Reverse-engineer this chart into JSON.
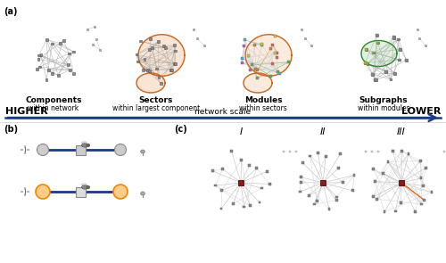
{
  "bg_color": "#ffffff",
  "arrow_color": "#1a3a8a",
  "node_gray": "#8a8a8a",
  "node_dark": "#555555",
  "node_red": "#8b1a1a",
  "node_yellow": "#c8c820",
  "edge_gray": "#aaaaaa",
  "sector_fill": "#f5c6a0",
  "sector_border": "#cc6622",
  "subgraph_fill": "#c8e8c8",
  "subgraph_border": "#338833",
  "module_colors": [
    "#4ab0e0",
    "#e06060",
    "#60b060",
    "#d0d030",
    "#c060c0",
    "#e08030"
  ],
  "scale_left": "HIGHER",
  "scale_right": "LOWER",
  "scale_mid": "network scale",
  "net_labels": [
    [
      "Components",
      "within network"
    ],
    [
      "Sectors",
      "within largest component"
    ],
    [
      "Modules",
      "within sectors"
    ],
    [
      "Subgraphs",
      "within modules"
    ]
  ],
  "roman": [
    "I",
    "II",
    "III"
  ],
  "panel_a": "(a)",
  "panel_b": "(b)",
  "panel_c": "(c)"
}
